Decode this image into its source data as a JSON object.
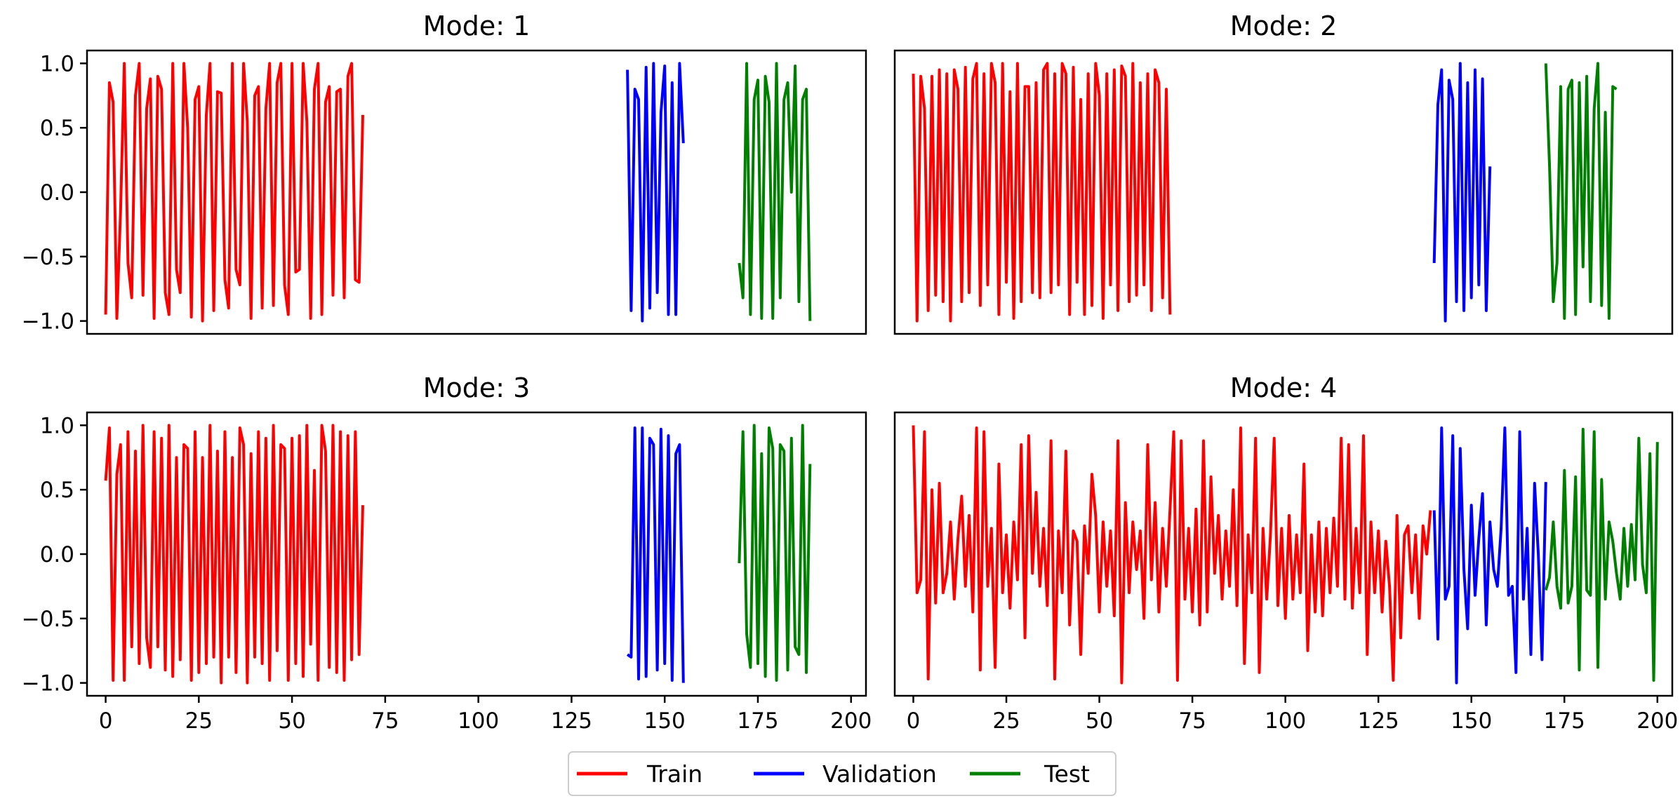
{
  "chart_data": [
    {
      "type": "line",
      "title": "Mode: 1",
      "xlim": [
        -5,
        204
      ],
      "ylim": [
        -1.1,
        1.1
      ],
      "yticks": [
        1.0,
        0.5,
        0.0,
        -0.5,
        -1.0
      ],
      "ytick_labels": [
        "1.0",
        "0.5",
        "0.0",
        "−0.5",
        "−1.0"
      ],
      "show_xticks": false,
      "series": [
        {
          "name": "Train",
          "color": "#ff0000",
          "x_start": 0,
          "values": [
            -0.95,
            0.85,
            0.7,
            -0.98,
            -0.15,
            1.0,
            -0.55,
            -0.82,
            0.75,
            1.0,
            -0.8,
            0.65,
            0.88,
            -0.98,
            0.9,
            0.8,
            -0.78,
            -0.95,
            1.0,
            -0.6,
            -0.78,
            1.0,
            0.5,
            -0.97,
            0.72,
            0.82,
            -1.0,
            0.6,
            1.0,
            -0.92,
            0.78,
            0.77,
            -0.68,
            -0.9,
            1.0,
            -0.6,
            -0.72,
            1.0,
            0.55,
            -0.98,
            0.75,
            0.82,
            -0.9,
            0.65,
            1.0,
            -0.88,
            0.85,
            1.0,
            -0.72,
            -0.95,
            1.0,
            -0.62,
            -0.6,
            1.0,
            0.55,
            -0.98,
            0.8,
            1.0,
            -0.95,
            0.7,
            0.82,
            -0.8,
            0.78,
            0.8,
            -0.82,
            0.9,
            1.0,
            -0.68,
            -0.7,
            0.6
          ]
        },
        {
          "name": "Validation",
          "color": "#0000ff",
          "x_start": 140,
          "values": [
            0.95,
            -0.92,
            0.8,
            0.72,
            -1.0,
            0.97,
            -0.9,
            1.0,
            -0.78,
            0.62,
            0.98,
            -0.95,
            0.85,
            -0.95,
            1.0,
            0.38
          ]
        },
        {
          "name": "Test",
          "color": "#008000",
          "x_start": 170,
          "values": [
            -0.55,
            -0.82,
            1.0,
            -0.95,
            0.72,
            0.87,
            -0.98,
            0.9,
            0.7,
            -0.98,
            1.0,
            -0.82,
            0.72,
            0.85,
            0.0,
            0.98,
            -0.85,
            0.72,
            0.8,
            -1.0
          ]
        }
      ]
    },
    {
      "type": "line",
      "title": "Mode: 2",
      "xlim": [
        -5,
        204
      ],
      "ylim": [
        -1.1,
        1.1
      ],
      "show_xticks": false,
      "show_yticks": false,
      "series": [
        {
          "name": "Train",
          "color": "#ff0000",
          "x_start": 0,
          "values": [
            0.92,
            -1.0,
            0.9,
            0.65,
            -0.92,
            0.9,
            -0.8,
            0.95,
            -0.85,
            0.92,
            -1.0,
            0.95,
            0.8,
            -0.85,
            0.97,
            -0.78,
            0.88,
            1.0,
            -0.88,
            0.92,
            -0.72,
            1.0,
            0.85,
            -0.95,
            1.0,
            -0.7,
            0.78,
            -0.98,
            1.0,
            -0.85,
            0.82,
            0.82,
            -0.78,
            0.85,
            -0.82,
            0.95,
            1.0,
            -0.78,
            0.92,
            -0.72,
            1.0,
            0.92,
            -0.95,
            0.97,
            -0.7,
            0.72,
            -0.95,
            0.92,
            -0.88,
            1.0,
            0.75,
            -0.98,
            0.92,
            -0.72,
            0.95,
            -0.92,
            0.98,
            0.9,
            -0.85,
            1.0,
            -0.8,
            0.85,
            -0.72,
            0.92,
            -0.92,
            0.95,
            0.85,
            -0.82,
            0.8,
            -0.95
          ]
        },
        {
          "name": "Validation",
          "color": "#0000ff",
          "x_start": 140,
          "values": [
            -0.55,
            0.68,
            0.95,
            -1.0,
            0.87,
            0.72,
            -0.85,
            1.0,
            -0.92,
            0.85,
            -0.82,
            0.95,
            -0.72,
            0.88,
            -0.92,
            0.2
          ]
        },
        {
          "name": "Test",
          "color": "#008000",
          "x_start": 170,
          "values": [
            1.0,
            0.2,
            -0.85,
            -0.55,
            0.82,
            -0.98,
            0.8,
            0.87,
            -0.95,
            0.85,
            -0.58,
            0.9,
            -0.85,
            0.65,
            1.0,
            -0.88,
            0.62,
            -0.98,
            0.82,
            0.8
          ]
        }
      ]
    },
    {
      "type": "line",
      "title": "Mode: 3",
      "xlim": [
        -5,
        204
      ],
      "ylim": [
        -1.1,
        1.1
      ],
      "yticks": [
        1.0,
        0.5,
        0.0,
        -0.5,
        -1.0
      ],
      "ytick_labels": [
        "1.0",
        "0.5",
        "0.0",
        "−0.5",
        "−1.0"
      ],
      "xticks": [
        0,
        25,
        50,
        75,
        100,
        125,
        150,
        175,
        200
      ],
      "series": [
        {
          "name": "Train",
          "color": "#ff0000",
          "x_start": 0,
          "values": [
            0.57,
            0.98,
            -0.98,
            0.62,
            0.85,
            -0.98,
            0.95,
            -0.72,
            0.8,
            -0.85,
            1.0,
            -0.65,
            -0.88,
            0.95,
            -0.72,
            0.9,
            -0.9,
            1.0,
            -0.95,
            0.75,
            -0.82,
            0.85,
            0.82,
            -0.98,
            0.95,
            -0.92,
            0.75,
            -0.85,
            1.0,
            -0.8,
            0.8,
            -1.0,
            0.95,
            -0.8,
            0.75,
            -0.92,
            0.98,
            0.85,
            -1.0,
            0.78,
            -0.8,
            0.95,
            -0.85,
            0.9,
            -0.98,
            1.0,
            -0.75,
            0.85,
            0.82,
            -0.98,
            0.9,
            -0.85,
            0.92,
            -0.95,
            1.0,
            -0.7,
            0.65,
            -0.98,
            1.0,
            0.8,
            -0.88,
            1.0,
            -0.92,
            0.95,
            -0.98,
            0.92,
            -0.82,
            0.95,
            -0.78,
            0.38
          ]
        },
        {
          "name": "Validation",
          "color": "#0000ff",
          "x_start": 140,
          "values": [
            -0.78,
            -0.8,
            0.98,
            -0.97,
            0.98,
            -0.95,
            0.9,
            0.85,
            -0.9,
            0.97,
            -0.85,
            0.92,
            -0.98,
            0.78,
            0.85,
            -1.0
          ]
        },
        {
          "name": "Test",
          "color": "#008000",
          "x_start": 170,
          "values": [
            -0.07,
            0.95,
            -0.62,
            -0.88,
            1.0,
            -0.85,
            0.78,
            -0.95,
            0.98,
            0.82,
            -0.98,
            0.85,
            0.8,
            -0.9,
            0.9,
            -0.72,
            -0.78,
            1.0,
            -0.92,
            0.7
          ]
        }
      ]
    },
    {
      "type": "line",
      "title": "Mode: 4",
      "xlim": [
        -5,
        204
      ],
      "ylim": [
        -1.1,
        1.1
      ],
      "show_yticks": false,
      "xticks": [
        0,
        25,
        50,
        75,
        100,
        125,
        150,
        175,
        200
      ],
      "series": [
        {
          "name": "Train",
          "color": "#ff0000",
          "x_start": 0,
          "values": [
            1.0,
            -0.3,
            -0.2,
            0.95,
            -0.97,
            0.5,
            -0.38,
            0.55,
            -0.3,
            -0.15,
            0.25,
            -0.35,
            0.12,
            0.45,
            -0.25,
            0.3,
            -0.45,
            0.98,
            -0.9,
            0.95,
            -0.25,
            0.2,
            -0.88,
            0.7,
            -0.3,
            0.15,
            -0.42,
            0.25,
            -0.2,
            0.85,
            -0.65,
            0.92,
            -0.15,
            0.48,
            -0.25,
            0.2,
            -0.4,
            0.88,
            -0.97,
            0.18,
            -0.3,
            0.8,
            -0.55,
            0.18,
            0.1,
            -0.78,
            0.22,
            -0.15,
            0.62,
            0.3,
            -0.45,
            0.25,
            -0.25,
            0.18,
            -0.48,
            0.88,
            -1.0,
            0.4,
            -0.3,
            0.25,
            -0.12,
            0.18,
            -0.5,
            0.85,
            -0.2,
            0.4,
            -0.45,
            0.2,
            -0.25,
            0.35,
            0.95,
            -0.98,
            0.88,
            -0.35,
            0.2,
            -0.45,
            0.35,
            -0.55,
            0.88,
            -0.45,
            0.6,
            -0.15,
            0.3,
            -0.35,
            0.18,
            -0.25,
            0.5,
            -0.4,
            0.98,
            -0.85,
            0.15,
            -0.3,
            0.9,
            -0.92,
            0.2,
            -0.35,
            0.15,
            0.9,
            -0.4,
            0.2,
            -0.5,
            0.3,
            -0.35,
            0.15,
            -0.3,
            0.7,
            -0.75,
            0.15,
            -0.45,
            0.25,
            -0.48,
            0.2,
            -0.3,
            0.28,
            -0.25,
            0.9,
            -0.35,
            0.85,
            -0.42,
            0.2,
            -0.3,
            0.92,
            -0.78,
            0.25,
            -0.3,
            0.18,
            -0.45,
            0.1,
            -0.25,
            -0.98,
            0.3,
            -0.65,
            0.15,
            0.22,
            -0.3,
            0.15,
            -0.5,
            0.22,
            0.0,
            0.34
          ]
        },
        {
          "name": "Validation",
          "color": "#0000ff",
          "x_start": 140,
          "values": [
            0.34,
            -0.66,
            0.98,
            -0.35,
            -0.25,
            0.92,
            -1.0,
            0.82,
            -0.12,
            -0.58,
            0.38,
            -0.32,
            0.12,
            0.47,
            -0.55,
            0.25,
            -0.12,
            -0.25,
            0.2,
            0.98,
            -0.32,
            -0.25,
            -0.92,
            0.95,
            -0.35,
            0.2,
            -0.78,
            0.55,
            0.0,
            -0.82,
            0.56
          ]
        },
        {
          "name": "Test",
          "color": "#008000",
          "x_start": 170,
          "values": [
            -0.28,
            -0.18,
            0.25,
            -0.25,
            -0.42,
            0.65,
            -0.38,
            -0.25,
            0.6,
            -0.9,
            0.97,
            -0.28,
            -0.32,
            0.95,
            -0.88,
            0.58,
            -0.35,
            0.25,
            0.1,
            -0.15,
            -0.35,
            0.2,
            -0.25,
            0.23,
            -0.2,
            0.9,
            -0.08,
            -0.3,
            0.78,
            -0.98,
            0.87
          ]
        }
      ]
    }
  ],
  "legend": {
    "placement": "bottom-center",
    "entries": [
      {
        "label": "Train",
        "color": "#ff0000"
      },
      {
        "label": "Validation",
        "color": "#0000ff"
      },
      {
        "label": "Test",
        "color": "#008000"
      }
    ]
  }
}
